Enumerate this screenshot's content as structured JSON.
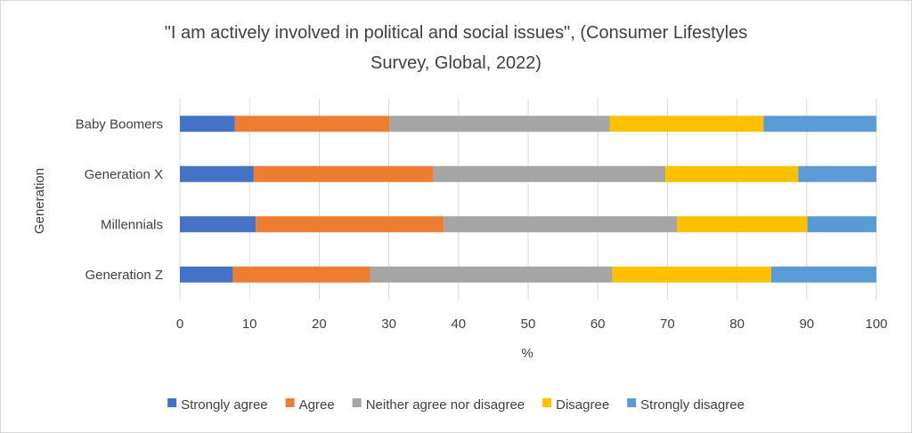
{
  "chart_data": {
    "type": "bar",
    "orientation": "horizontal",
    "stacked": true,
    "title_lines": [
      "\"I am actively involved in political and social issues\", (Consumer Lifestyles",
      "Survey, Global, 2022)"
    ],
    "xlabel": "%",
    "ylabel": "Generation",
    "xlim": [
      0,
      100
    ],
    "x_ticks": [
      0,
      10,
      20,
      30,
      40,
      50,
      60,
      70,
      80,
      90,
      100
    ],
    "grid": true,
    "legend_position": "bottom",
    "categories": [
      "Baby Boomers",
      "Generation X",
      "Millennials",
      "Generation Z"
    ],
    "series": [
      {
        "name": "Strongly agree",
        "color": "#4472c4",
        "values": [
          7.9,
          10.6,
          10.9,
          7.6
        ]
      },
      {
        "name": "Agree",
        "color": "#ed7d31",
        "values": [
          22.2,
          25.8,
          27.0,
          19.7
        ]
      },
      {
        "name": "Neither agree nor disagree",
        "color": "#a5a5a5",
        "values": [
          31.6,
          33.3,
          33.5,
          34.8
        ]
      },
      {
        "name": "Disagree",
        "color": "#ffc000",
        "values": [
          22.1,
          19.1,
          18.7,
          22.8
        ]
      },
      {
        "name": "Strongly disagree",
        "color": "#5b9bd5",
        "values": [
          16.2,
          11.2,
          9.9,
          15.1
        ]
      }
    ]
  }
}
